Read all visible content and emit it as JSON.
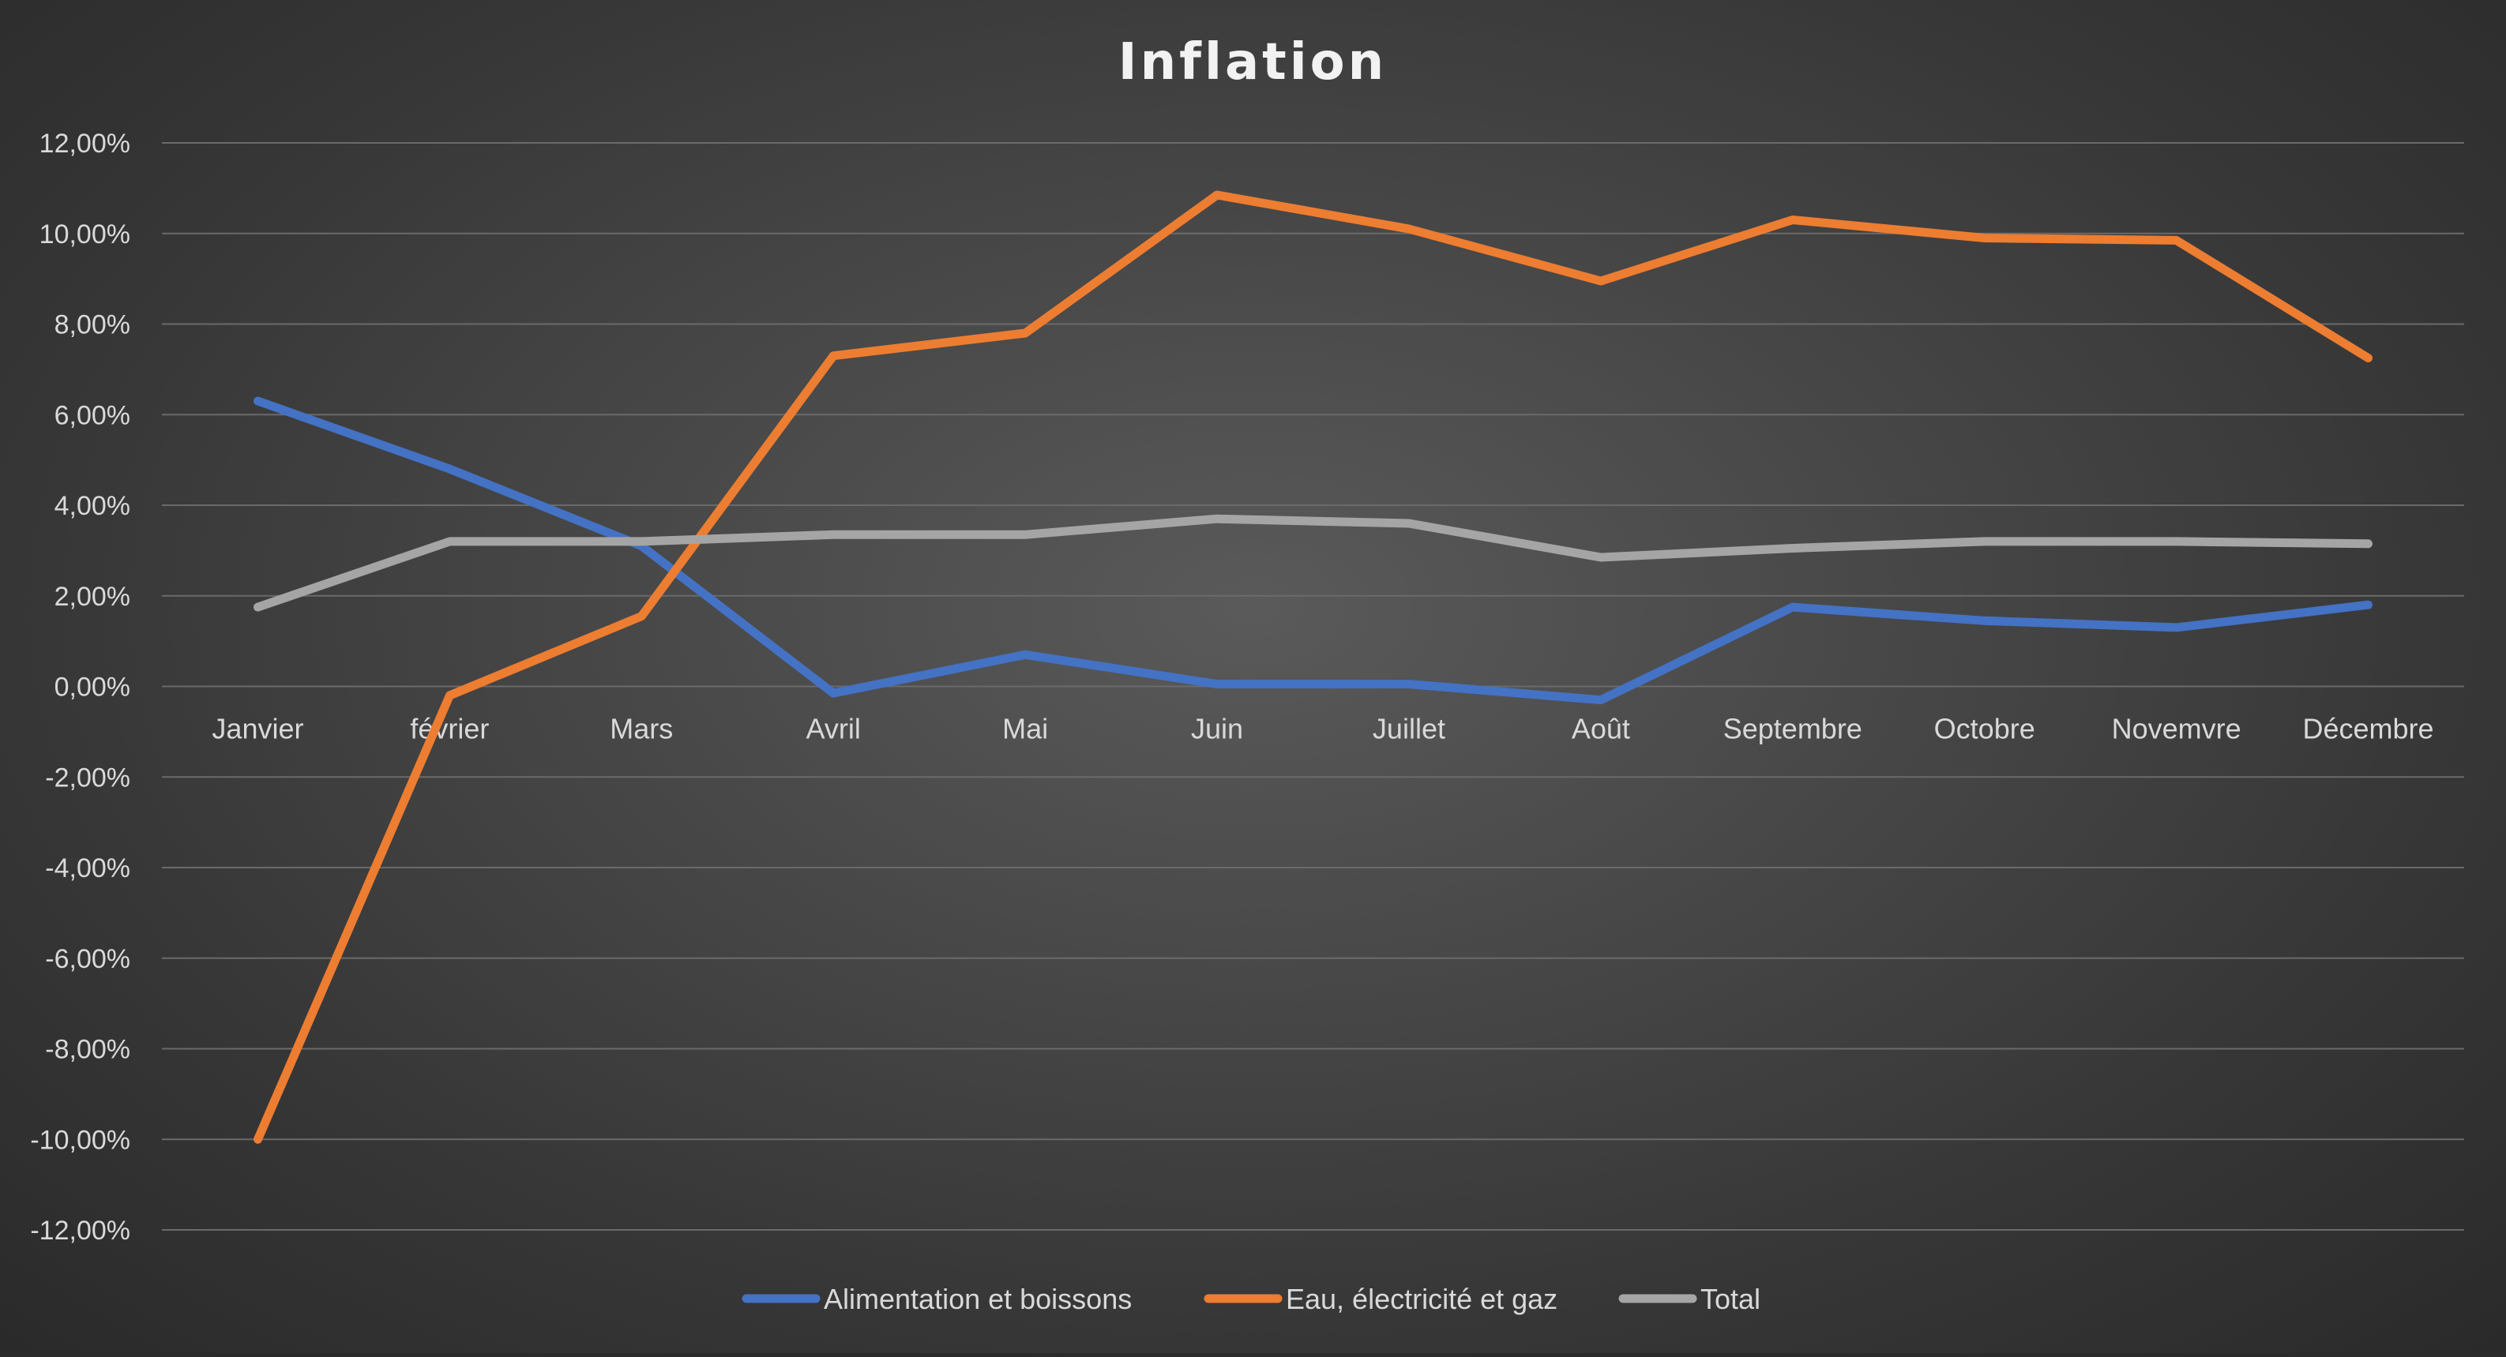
{
  "chart_data": {
    "type": "line",
    "title": "Inflation",
    "xlabel": "",
    "ylabel": "",
    "categories": [
      "Janvier",
      "février",
      "Mars",
      "Avril",
      "Mai",
      "Juin",
      "Juillet",
      "Août",
      "Septembre",
      "Octobre",
      "Novemvre",
      "Décembre"
    ],
    "y_ticks": [
      "12,00%",
      "10,00%",
      "8,00%",
      "6,00%",
      "4,00%",
      "2,00%",
      "0,00%",
      "-2,00%",
      "-4,00%",
      "-6,00%",
      "-8,00%",
      "-10,00%",
      "-12,00%"
    ],
    "ylim": [
      -12,
      12
    ],
    "grid": true,
    "legend_position": "bottom",
    "series": [
      {
        "name": "Alimentation et boissons",
        "color": "#4472c4",
        "values": [
          6.3,
          4.8,
          3.1,
          -0.15,
          0.7,
          0.05,
          0.05,
          -0.3,
          1.75,
          1.45,
          1.3,
          1.8
        ]
      },
      {
        "name": "Eau, électricité et gaz",
        "color": "#ed7d31",
        "values": [
          -10.0,
          -0.2,
          1.55,
          7.3,
          7.8,
          10.85,
          10.1,
          8.95,
          10.3,
          9.9,
          9.85,
          7.25
        ]
      },
      {
        "name": "Total",
        "color": "#a5a5a5",
        "values": [
          1.75,
          3.2,
          3.2,
          3.35,
          3.35,
          3.7,
          3.6,
          2.85,
          3.05,
          3.2,
          3.2,
          3.15
        ]
      }
    ]
  }
}
